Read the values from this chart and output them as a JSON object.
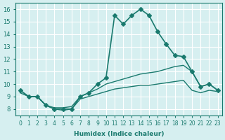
{
  "xlabel": "Humidex (Indice chaleur)",
  "ylabel": "",
  "bg_color": "#d6eff0",
  "grid_color": "#ffffff",
  "line_color": "#1a7a6e",
  "xlim": [
    -0.5,
    23.5
  ],
  "ylim": [
    7.5,
    16.5
  ],
  "xticks": [
    0,
    1,
    2,
    3,
    4,
    5,
    6,
    7,
    8,
    9,
    10,
    11,
    12,
    13,
    14,
    15,
    16,
    17,
    18,
    19,
    20,
    21,
    22,
    23
  ],
  "yticks": [
    8,
    9,
    10,
    11,
    12,
    13,
    14,
    15,
    16
  ],
  "series": [
    {
      "x": [
        0,
        1,
        2,
        3,
        4,
        5,
        6,
        7,
        8,
        9,
        10,
        11,
        12,
        13,
        14,
        15,
        16,
        17,
        18,
        19,
        20,
        21,
        22,
        23
      ],
      "y": [
        9.5,
        9.0,
        9.0,
        8.3,
        8.0,
        8.0,
        8.0,
        9.0,
        9.3,
        10.0,
        10.5,
        15.5,
        14.8,
        15.5,
        16.0,
        15.5,
        14.2,
        13.2,
        12.3,
        12.2,
        11.0,
        9.8,
        10.0,
        9.5
      ],
      "marker": "D",
      "markersize": 3,
      "linewidth": 1.2
    },
    {
      "x": [
        0,
        1,
        2,
        3,
        4,
        5,
        6,
        7,
        8,
        9,
        10,
        11,
        12,
        13,
        14,
        15,
        16,
        17,
        18,
        19,
        20,
        21,
        22,
        23
      ],
      "y": [
        9.5,
        9.0,
        9.0,
        8.3,
        8.1,
        8.1,
        8.2,
        9.0,
        9.3,
        9.6,
        10.0,
        10.2,
        10.4,
        10.6,
        10.8,
        10.9,
        11.0,
        11.2,
        11.4,
        11.5,
        11.0,
        9.8,
        10.0,
        9.5
      ],
      "marker": null,
      "markersize": 0,
      "linewidth": 1.0
    },
    {
      "x": [
        0,
        1,
        2,
        3,
        4,
        5,
        6,
        7,
        8,
        9,
        10,
        11,
        12,
        13,
        14,
        15,
        16,
        17,
        18,
        19,
        20,
        21,
        22,
        23
      ],
      "y": [
        9.3,
        9.0,
        9.0,
        8.3,
        8.0,
        7.9,
        8.0,
        8.8,
        9.0,
        9.2,
        9.4,
        9.6,
        9.7,
        9.8,
        9.9,
        9.9,
        10.0,
        10.1,
        10.2,
        10.3,
        9.5,
        9.3,
        9.5,
        9.4
      ],
      "marker": null,
      "markersize": 0,
      "linewidth": 1.0
    }
  ]
}
